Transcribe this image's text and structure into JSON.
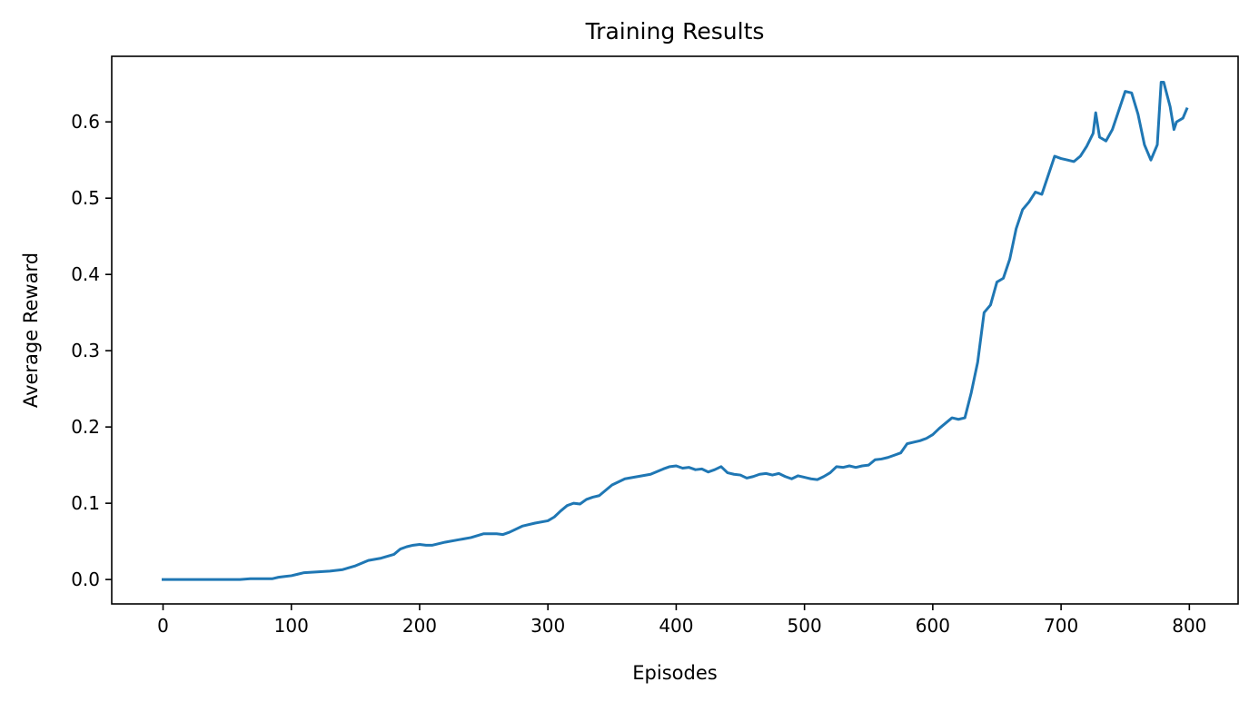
{
  "chart_data": {
    "type": "line",
    "title": "Training Results",
    "xlabel": "Episodes",
    "ylabel": "Average Reward",
    "xlim": [
      -40,
      838
    ],
    "ylim": [
      -0.032,
      0.686
    ],
    "xticks": [
      0,
      100,
      200,
      300,
      400,
      500,
      600,
      700,
      800
    ],
    "xtick_labels": [
      "0",
      "100",
      "200",
      "300",
      "400",
      "500",
      "600",
      "700",
      "800"
    ],
    "yticks": [
      0.0,
      0.1,
      0.2,
      0.3,
      0.4,
      0.5,
      0.6
    ],
    "ytick_labels": [
      "0.0",
      "0.1",
      "0.2",
      "0.3",
      "0.4",
      "0.5",
      "0.6"
    ],
    "grid": false,
    "colors": {
      "line": "#1f77b4",
      "axes": "#000000",
      "background": "#ffffff"
    },
    "series": [
      {
        "x": [
          0,
          20,
          40,
          60,
          68,
          75,
          85,
          90,
          95,
          100,
          105,
          110,
          120,
          130,
          140,
          150,
          160,
          170,
          180,
          185,
          190,
          195,
          200,
          205,
          210,
          220,
          230,
          240,
          250,
          260,
          265,
          270,
          280,
          290,
          300,
          305,
          310,
          315,
          320,
          325,
          330,
          335,
          340,
          350,
          360,
          370,
          380,
          390,
          395,
          400,
          405,
          410,
          415,
          420,
          425,
          430,
          435,
          440,
          445,
          450,
          455,
          460,
          465,
          470,
          475,
          480,
          485,
          490,
          495,
          500,
          505,
          510,
          515,
          520,
          525,
          530,
          535,
          540,
          545,
          550,
          555,
          560,
          565,
          570,
          575,
          580,
          585,
          590,
          595,
          600,
          605,
          610,
          615,
          620,
          625,
          630,
          635,
          640,
          645,
          650,
          655,
          660,
          665,
          670,
          675,
          680,
          685,
          690,
          695,
          700,
          705,
          710,
          715,
          720,
          725,
          727,
          730,
          735,
          740,
          745,
          750,
          755,
          760,
          765,
          770,
          775,
          778,
          780,
          785,
          788,
          790,
          795,
          798
        ],
        "y": [
          0.0,
          0.0,
          0.0,
          0.0,
          0.001,
          0.001,
          0.001,
          0.003,
          0.004,
          0.005,
          0.007,
          0.009,
          0.01,
          0.011,
          0.013,
          0.018,
          0.025,
          0.028,
          0.033,
          0.04,
          0.043,
          0.045,
          0.046,
          0.045,
          0.045,
          0.049,
          0.052,
          0.055,
          0.06,
          0.06,
          0.059,
          0.062,
          0.07,
          0.074,
          0.077,
          0.082,
          0.09,
          0.097,
          0.1,
          0.099,
          0.105,
          0.108,
          0.11,
          0.124,
          0.132,
          0.135,
          0.138,
          0.145,
          0.148,
          0.149,
          0.146,
          0.147,
          0.144,
          0.145,
          0.141,
          0.144,
          0.148,
          0.14,
          0.138,
          0.137,
          0.133,
          0.135,
          0.138,
          0.139,
          0.137,
          0.139,
          0.135,
          0.132,
          0.136,
          0.134,
          0.132,
          0.131,
          0.135,
          0.14,
          0.148,
          0.147,
          0.149,
          0.147,
          0.149,
          0.15,
          0.157,
          0.158,
          0.16,
          0.163,
          0.166,
          0.178,
          0.18,
          0.182,
          0.185,
          0.19,
          0.198,
          0.205,
          0.212,
          0.21,
          0.212,
          0.245,
          0.285,
          0.35,
          0.36,
          0.39,
          0.395,
          0.42,
          0.46,
          0.485,
          0.495,
          0.508,
          0.505,
          0.53,
          0.555,
          0.552,
          0.55,
          0.548,
          0.555,
          0.568,
          0.585,
          0.612,
          0.58,
          0.575,
          0.59,
          0.615,
          0.64,
          0.638,
          0.61,
          0.57,
          0.55,
          0.57,
          0.652,
          0.652,
          0.62,
          0.59,
          0.6,
          0.605,
          0.617
        ]
      }
    ]
  }
}
